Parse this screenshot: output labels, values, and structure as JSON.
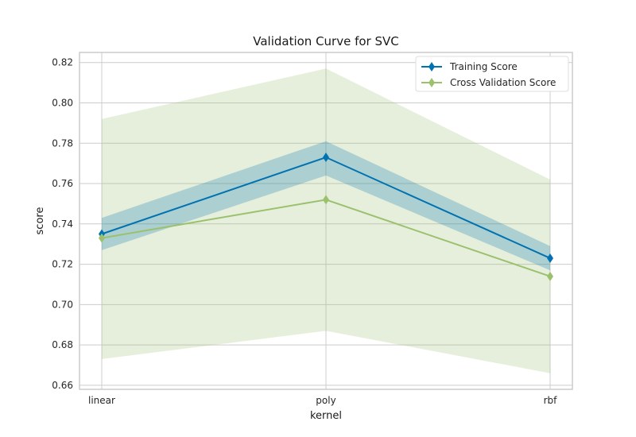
{
  "chart_data": {
    "type": "line",
    "title": "Validation Curve for SVC",
    "xlabel": "kernel",
    "ylabel": "score",
    "categories": [
      "linear",
      "poly",
      "rbf"
    ],
    "ylim": [
      0.658,
      0.825
    ],
    "yticks": [
      0.66,
      0.68,
      0.7,
      0.72,
      0.74,
      0.76,
      0.78,
      0.8,
      0.82
    ],
    "ytick_labels": [
      "0.66",
      "0.68",
      "0.70",
      "0.72",
      "0.74",
      "0.76",
      "0.78",
      "0.80",
      "0.82"
    ],
    "grid": true,
    "legend_position": "top-right",
    "series": [
      {
        "name": "Training Score",
        "color": "#0072B2",
        "marker": "diamond",
        "values": [
          0.735,
          0.773,
          0.723
        ],
        "band_low": [
          0.727,
          0.764,
          0.717
        ],
        "band_high": [
          0.743,
          0.781,
          0.729
        ]
      },
      {
        "name": "Cross Validation Score",
        "color": "#9BC16E",
        "marker": "diamond",
        "values": [
          0.733,
          0.752,
          0.714
        ],
        "band_low": [
          0.673,
          0.687,
          0.666
        ],
        "band_high": [
          0.792,
          0.817,
          0.762
        ]
      }
    ]
  }
}
